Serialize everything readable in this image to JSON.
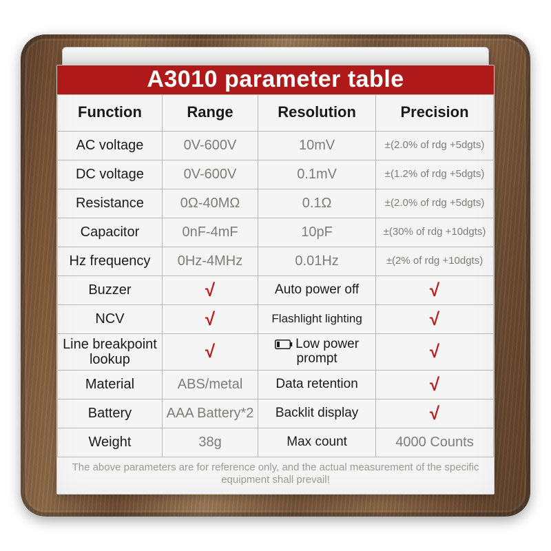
{
  "colors": {
    "title_bg": "#b01919",
    "title_text": "#ffffff",
    "check": "#c01818",
    "border": "#b9b9b3",
    "muted": "#7d7d77",
    "text": "#1a1a1a",
    "paper": "#f5f5f5"
  },
  "title": "A3010 parameter table",
  "columns": [
    "Function",
    "Range",
    "Resolution",
    "Precision"
  ],
  "col_widths_pct": [
    24,
    22,
    27,
    27
  ],
  "spec_rows": [
    {
      "fn": "AC voltage",
      "range": "0V-600V",
      "res": "10mV",
      "prec": "±(2.0% of rdg +5dgts)"
    },
    {
      "fn": "DC voltage",
      "range": "0V-600V",
      "res": "0.1mV",
      "prec": "±(1.2% of rdg +5dgts)"
    },
    {
      "fn": "Resistance",
      "range": "0Ω-40MΩ",
      "res": "0.1Ω",
      "prec": "±(2.0% of rdg +5dgts)"
    },
    {
      "fn": "Capacitor",
      "range": "0nF-4mF",
      "res": "10pF",
      "prec": "±(30% of rdg +10dgts)"
    },
    {
      "fn": "Hz frequency",
      "range": "0Hz-4MHz",
      "res": "0.01Hz",
      "prec": "±(2% of rdg +10dgts)"
    }
  ],
  "feature_rows": [
    {
      "left": "Buzzer",
      "left_val": "check",
      "right": "Auto power off",
      "right_val": "check"
    },
    {
      "left": "NCV",
      "left_val": "check",
      "right": "Flashlight lighting",
      "right_val": "check"
    },
    {
      "left": "Line breakpoint lookup",
      "left_val": "check",
      "right": "Low power prompt",
      "right_val": "check",
      "right_icon": "battery"
    },
    {
      "left": "Material",
      "left_val": "ABS/metal",
      "right": "Data retention",
      "right_val": "check"
    },
    {
      "left": "Battery",
      "left_val": "AAA Battery*2",
      "right": "Backlit display",
      "right_val": "check"
    },
    {
      "left": "Weight",
      "left_val": "38g",
      "right": "Max count",
      "right_val": "4000 Counts"
    }
  ],
  "check_glyph": "√",
  "footer": "The above parameters are for reference only, and the actual measurement of the specific equipment shall prevail!"
}
